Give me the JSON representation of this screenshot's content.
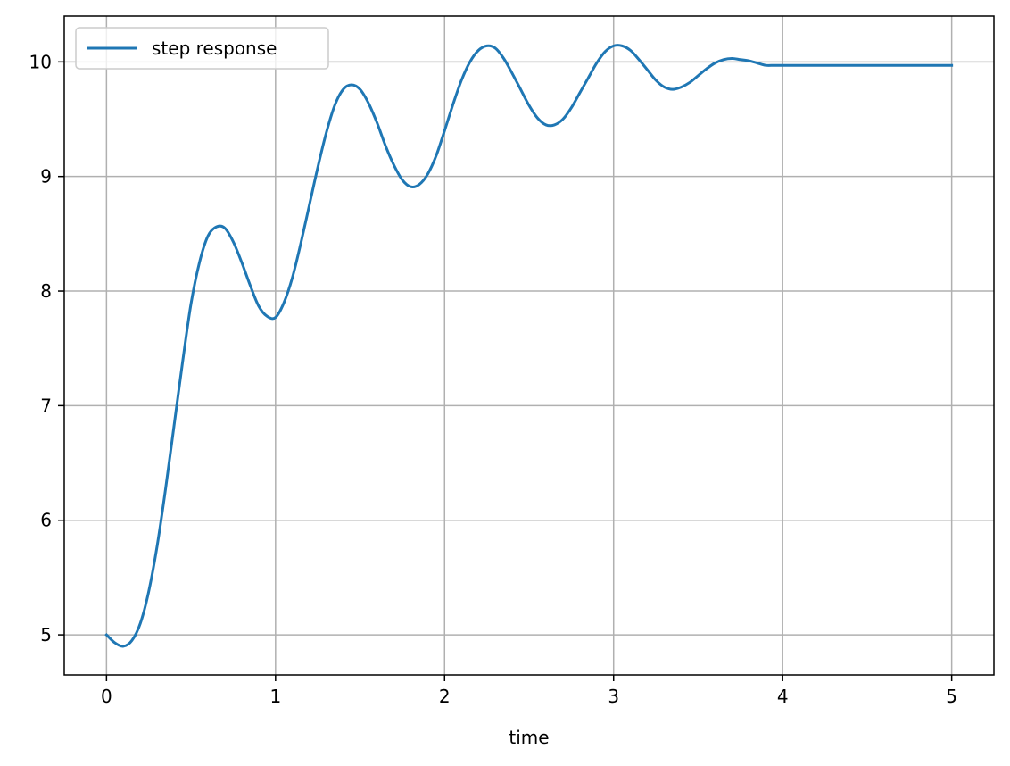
{
  "chart_data": {
    "type": "line",
    "title": "",
    "xlabel": "time",
    "ylabel": "",
    "xlim": [
      -0.25,
      5.25
    ],
    "ylim": [
      4.65,
      10.4
    ],
    "xticks": [
      0,
      1,
      2,
      3,
      4,
      5
    ],
    "yticks": [
      5,
      6,
      7,
      8,
      9,
      10
    ],
    "xtick_labels": [
      "0",
      "1",
      "2",
      "3",
      "4",
      "5"
    ],
    "ytick_labels": [
      "5",
      "6",
      "7",
      "8",
      "9",
      "10"
    ],
    "grid": true,
    "legend_position": "upper-left",
    "series": [
      {
        "name": "step response",
        "color": "#1f77b4",
        "x": [
          0,
          0.05,
          0.1,
          0.15,
          0.2,
          0.25,
          0.3,
          0.35,
          0.4,
          0.45,
          0.5,
          0.55,
          0.6,
          0.65,
          0.7,
          0.75,
          0.8,
          0.85,
          0.9,
          0.95,
          1.0,
          1.05,
          1.1,
          1.15,
          1.2,
          1.25,
          1.3,
          1.35,
          1.4,
          1.45,
          1.5,
          1.55,
          1.6,
          1.65,
          1.7,
          1.75,
          1.8,
          1.85,
          1.9,
          1.95,
          2.0,
          2.05,
          2.1,
          2.15,
          2.2,
          2.25,
          2.3,
          2.35,
          2.4,
          2.45,
          2.5,
          2.55,
          2.6,
          2.65,
          2.7,
          2.75,
          2.8,
          2.85,
          2.9,
          2.95,
          3.0,
          3.05,
          3.1,
          3.15,
          3.2,
          3.25,
          3.3,
          3.35,
          3.4,
          3.45,
          3.5,
          3.55,
          3.6,
          3.65,
          3.7,
          3.75,
          3.8,
          3.85,
          3.9,
          3.95,
          4.0,
          4.05,
          4.1,
          4.15,
          4.2,
          4.25,
          4.3,
          4.35,
          4.4,
          4.45,
          4.5,
          4.55,
          4.6,
          4.65,
          4.7,
          4.75,
          4.8,
          4.85,
          4.9,
          4.95,
          5.0
        ],
        "y": [
          5.0,
          4.93,
          4.9,
          4.95,
          5.1,
          5.38,
          5.78,
          6.28,
          6.83,
          7.38,
          7.89,
          8.25,
          8.48,
          8.56,
          8.55,
          8.43,
          8.25,
          8.05,
          7.87,
          7.78,
          7.77,
          7.9,
          8.12,
          8.42,
          8.75,
          9.08,
          9.38,
          9.62,
          9.76,
          9.8,
          9.76,
          9.64,
          9.47,
          9.27,
          9.1,
          8.97,
          8.91,
          8.93,
          9.02,
          9.18,
          9.4,
          9.63,
          9.84,
          10.0,
          10.1,
          10.14,
          10.12,
          10.03,
          9.9,
          9.76,
          9.62,
          9.51,
          9.45,
          9.45,
          9.5,
          9.6,
          9.73,
          9.86,
          9.99,
          10.09,
          10.14,
          10.14,
          10.1,
          10.02,
          9.93,
          9.84,
          9.78,
          9.76,
          9.78,
          9.82,
          9.88,
          9.94,
          9.99,
          10.02,
          10.03,
          10.02,
          10.01,
          9.99,
          9.97,
          9.97,
          9.97,
          9.97,
          9.97,
          9.97,
          9.97,
          9.97,
          9.97,
          9.97,
          9.97,
          9.97,
          9.97,
          9.97,
          9.97,
          9.97,
          9.97,
          9.97,
          9.97,
          9.97,
          9.97,
          9.97,
          9.97
        ]
      }
    ]
  }
}
